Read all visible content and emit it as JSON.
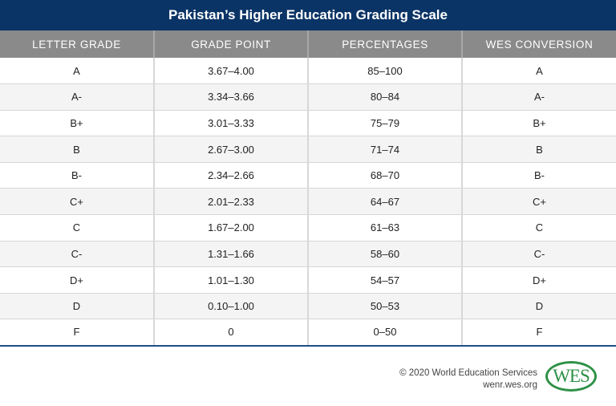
{
  "title": "Pakistan’s Higher Education Grading Scale",
  "columns": [
    "LETTER GRADE",
    "GRADE POINT",
    "PERCENTAGES",
    "WES CONVERSION"
  ],
  "rows": [
    [
      "A",
      "3.67–4.00",
      "85–100",
      "A"
    ],
    [
      "A-",
      "3.34–3.66",
      "80–84",
      "A-"
    ],
    [
      "B+",
      "3.01–3.33",
      "75–79",
      "B+"
    ],
    [
      "B",
      "2.67–3.00",
      "71–74",
      "B"
    ],
    [
      "B-",
      "2.34–2.66",
      "68–70",
      "B-"
    ],
    [
      "C+",
      "2.01–2.33",
      "64–67",
      "C+"
    ],
    [
      "C",
      "1.67–2.00",
      "61–63",
      "C"
    ],
    [
      "C-",
      "1.31–1.66",
      "58–60",
      "C-"
    ],
    [
      "D+",
      "1.01–1.30",
      "54–57",
      "D+"
    ],
    [
      "D",
      "0.10–1.00",
      "50–53",
      "D"
    ],
    [
      "F",
      "0",
      "0–50",
      "F"
    ]
  ],
  "footer": {
    "copyright": "© 2020 World Education Services",
    "url": "wenr.wes.org",
    "logo": "WES"
  },
  "colors": {
    "title_bg": "#0b3466",
    "header_bg": "#8a8a8a",
    "logo": "#2e9146"
  }
}
